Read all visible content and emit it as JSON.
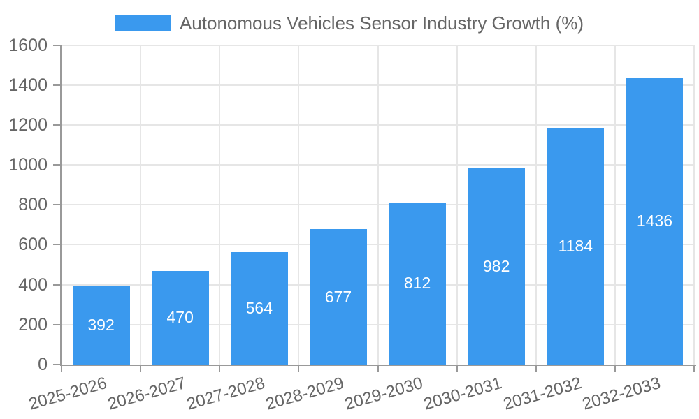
{
  "legend": {
    "label": "Autonomous Vehicles Sensor Industry Growth (%)"
  },
  "colors": {
    "bar": "#3a99ee",
    "grid": "#e6e6e6",
    "axis": "#999999",
    "tick_text": "#666666",
    "legend_text": "#666666",
    "value_text": "#ffffff",
    "background": "#ffffff"
  },
  "chart_data": {
    "type": "bar",
    "title": "Autonomous Vehicles Sensor Industry Growth (%)",
    "categories": [
      "2025-2026",
      "2026-2027",
      "2027-2028",
      "2028-2029",
      "2029-2030",
      "2030-2031",
      "2031-2032",
      "2032-2033"
    ],
    "values": [
      392,
      470,
      564,
      677,
      812,
      982,
      1184,
      1436
    ],
    "series_label": "Autonomous Vehicles Sensor Industry Growth (%)",
    "xlabel": "",
    "ylabel": "",
    "ylim": [
      0,
      1600
    ],
    "ytick_step": 200,
    "ytick_labels": [
      "0",
      "200",
      "400",
      "600",
      "800",
      "1000",
      "1200",
      "1400",
      "1600"
    ],
    "grid": true,
    "legend_position": "top",
    "value_label_position": "inside-center",
    "x_tick_rotation_deg": -16
  }
}
